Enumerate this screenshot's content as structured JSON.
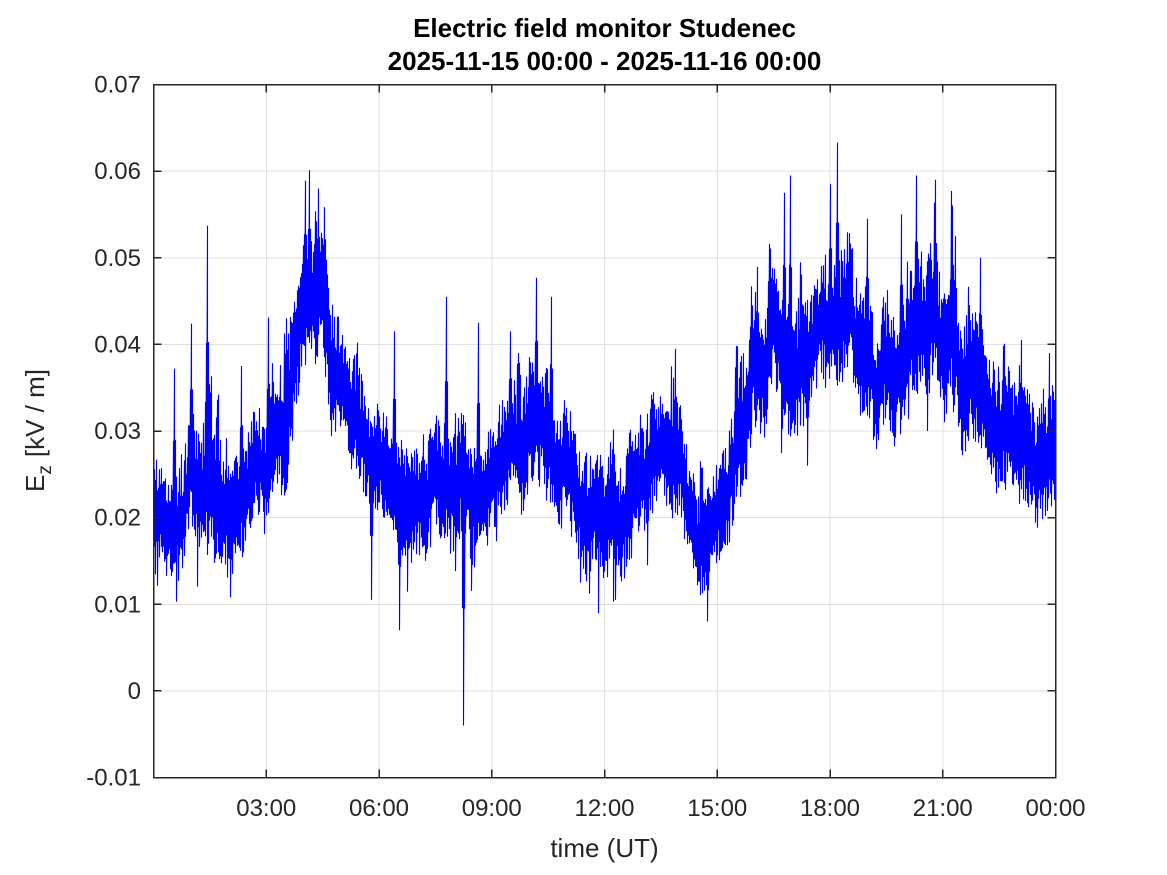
{
  "figure": {
    "title": "Electric field monitor Studenec",
    "subtitle": "2025-11-15 00:00 - 2025-11-16 00:00"
  },
  "chart_data": {
    "type": "line",
    "title": "Electric field monitor Studenec",
    "subtitle": "2025-11-15 00:00 - 2025-11-16 00:00",
    "xlabel": "time (UT)",
    "ylabel": {
      "symbol": "E",
      "subscript": "z",
      "units": "[kV / m]"
    },
    "xlim_hours": [
      0,
      24
    ],
    "ylim": [
      -0.01,
      0.07
    ],
    "grid": true,
    "legend_position": "none",
    "line_color": "#0000FF",
    "x_ticks": {
      "hours": [
        3,
        6,
        9,
        12,
        15,
        18,
        21,
        24
      ],
      "labels": [
        "03:00",
        "06:00",
        "09:00",
        "12:00",
        "15:00",
        "18:00",
        "21:00",
        "00:00"
      ]
    },
    "y_ticks": {
      "values": [
        0.07,
        0.06,
        0.05,
        0.04,
        0.03,
        0.02,
        0.01,
        0,
        -0.01
      ],
      "labels": [
        "0.07",
        "0.06",
        "0.05",
        "0.04",
        "0.03",
        "0.02",
        "0.01",
        "0",
        "-0.01"
      ]
    },
    "series": {
      "name": "Ez",
      "t_hours": [
        0,
        0.5,
        1,
        1.5,
        2,
        2.5,
        3,
        3.5,
        4,
        4.5,
        5,
        5.5,
        6,
        6.5,
        7,
        7.5,
        8,
        8.5,
        9,
        9.5,
        10,
        10.5,
        11,
        11.5,
        12,
        12.5,
        13,
        13.5,
        14,
        14.5,
        15,
        15.5,
        16,
        16.5,
        17,
        17.5,
        18,
        18.5,
        19,
        19.5,
        20,
        20.5,
        21,
        21.5,
        22,
        22.5,
        23,
        23.5,
        24
      ],
      "mean": [
        0.0205,
        0.021,
        0.023,
        0.0235,
        0.021,
        0.0245,
        0.0265,
        0.033,
        0.047,
        0.0435,
        0.034,
        0.029,
        0.0265,
        0.023,
        0.022,
        0.0235,
        0.0245,
        0.023,
        0.0245,
        0.027,
        0.03,
        0.0285,
        0.024,
        0.021,
        0.0195,
        0.0215,
        0.025,
        0.0265,
        0.0255,
        0.017,
        0.02,
        0.029,
        0.0365,
        0.042,
        0.038,
        0.0365,
        0.044,
        0.042,
        0.038,
        0.0355,
        0.0405,
        0.044,
        0.042,
        0.038,
        0.0345,
        0.0305,
        0.0275,
        0.0275,
        0.028
      ],
      "half_range": [
        0.0055,
        0.006,
        0.0065,
        0.0075,
        0.007,
        0.006,
        0.006,
        0.0075,
        0.0075,
        0.007,
        0.0065,
        0.006,
        0.006,
        0.0065,
        0.006,
        0.0065,
        0.007,
        0.0065,
        0.0065,
        0.0065,
        0.0075,
        0.007,
        0.0065,
        0.0065,
        0.0065,
        0.006,
        0.006,
        0.006,
        0.0065,
        0.0055,
        0.0055,
        0.0065,
        0.007,
        0.0075,
        0.007,
        0.0065,
        0.0075,
        0.0075,
        0.0075,
        0.007,
        0.0075,
        0.0075,
        0.0075,
        0.0075,
        0.0075,
        0.007,
        0.0065,
        0.0065,
        0.0065
      ],
      "extremes": [
        {
          "t": 0.55,
          "v": 0.0372
        },
        {
          "t": 1.0,
          "v": 0.0424
        },
        {
          "t": 1.43,
          "v": 0.0537
        },
        {
          "t": 2.05,
          "v": 0.0108
        },
        {
          "t": 2.35,
          "v": 0.0375
        },
        {
          "t": 3.05,
          "v": 0.0431
        },
        {
          "t": 4.05,
          "v": 0.0589
        },
        {
          "t": 4.15,
          "v": 0.0601
        },
        {
          "t": 4.4,
          "v": 0.058
        },
        {
          "t": 5.8,
          "v": 0.0105
        },
        {
          "t": 6.4,
          "v": 0.0415
        },
        {
          "t": 6.55,
          "v": 0.007
        },
        {
          "t": 7.8,
          "v": 0.0455
        },
        {
          "t": 8.25,
          "v": -0.004
        },
        {
          "t": 8.65,
          "v": 0.0425
        },
        {
          "t": 9.5,
          "v": 0.0415
        },
        {
          "t": 10.2,
          "v": 0.0477
        },
        {
          "t": 10.6,
          "v": 0.0455
        },
        {
          "t": 12.3,
          "v": 0.0105
        },
        {
          "t": 13.15,
          "v": 0.0145
        },
        {
          "t": 13.9,
          "v": 0.0395
        },
        {
          "t": 14.75,
          "v": 0.008
        },
        {
          "t": 15.9,
          "v": 0.0467
        },
        {
          "t": 16.4,
          "v": 0.0516
        },
        {
          "t": 16.8,
          "v": 0.0575
        },
        {
          "t": 16.95,
          "v": 0.0595
        },
        {
          "t": 17.4,
          "v": 0.026
        },
        {
          "t": 18.0,
          "v": 0.0585
        },
        {
          "t": 18.2,
          "v": 0.0633
        },
        {
          "t": 19.0,
          "v": 0.0545
        },
        {
          "t": 19.9,
          "v": 0.055
        },
        {
          "t": 20.3,
          "v": 0.0595
        },
        {
          "t": 20.8,
          "v": 0.059
        },
        {
          "t": 21.35,
          "v": 0.0525
        },
        {
          "t": 22.0,
          "v": 0.05
        },
        {
          "t": 23.1,
          "v": 0.0405
        },
        {
          "t": 23.85,
          "v": 0.039
        }
      ]
    }
  },
  "colors": {
    "line": "#0000FF",
    "grid": "#E0E0E0",
    "axis": "#262626",
    "tick_text": "#262626",
    "title_text": "#000000",
    "background": "#FFFFFF"
  }
}
